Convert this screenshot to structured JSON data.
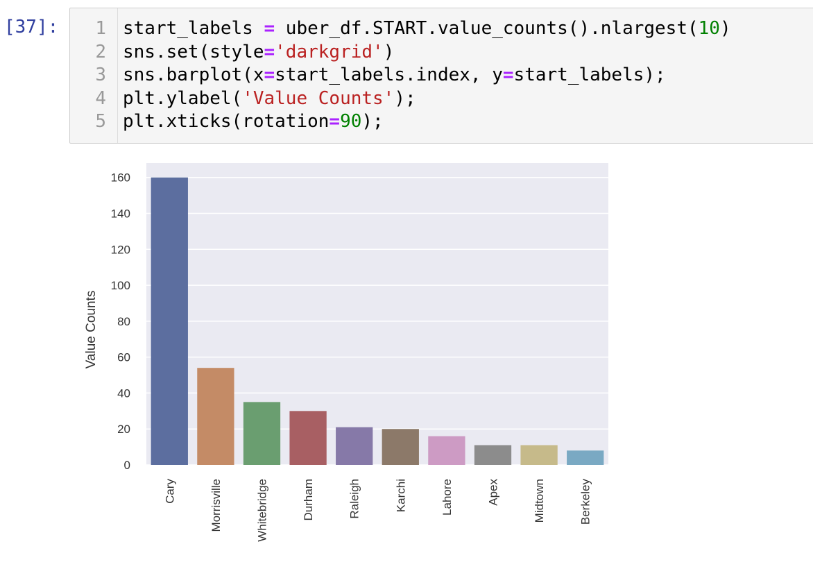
{
  "cell": {
    "prompt": "[37]:",
    "lines": [
      {
        "n": "1",
        "segments": [
          {
            "t": "start_labels ",
            "c": "plain"
          },
          {
            "t": "=",
            "c": "op"
          },
          {
            "t": " uber_df.START.value_counts().nlargest(",
            "c": "plain"
          },
          {
            "t": "10",
            "c": "num"
          },
          {
            "t": ")",
            "c": "plain"
          }
        ]
      },
      {
        "n": "2",
        "segments": [
          {
            "t": "sns.set(style",
            "c": "plain"
          },
          {
            "t": "=",
            "c": "op"
          },
          {
            "t": "'darkgrid'",
            "c": "str"
          },
          {
            "t": ")",
            "c": "plain"
          }
        ]
      },
      {
        "n": "3",
        "segments": [
          {
            "t": "sns.barplot(x",
            "c": "plain"
          },
          {
            "t": "=",
            "c": "op"
          },
          {
            "t": "start_labels.index, y",
            "c": "plain"
          },
          {
            "t": "=",
            "c": "op"
          },
          {
            "t": "start_labels);",
            "c": "plain"
          }
        ]
      },
      {
        "n": "4",
        "segments": [
          {
            "t": "plt.ylabel(",
            "c": "plain"
          },
          {
            "t": "'Value Counts'",
            "c": "str"
          },
          {
            "t": ");",
            "c": "plain"
          }
        ]
      },
      {
        "n": "5",
        "segments": [
          {
            "t": "plt.xticks(rotation",
            "c": "plain"
          },
          {
            "t": "=",
            "c": "op"
          },
          {
            "t": "90",
            "c": "num"
          },
          {
            "t": ");",
            "c": "plain"
          }
        ]
      }
    ]
  },
  "chart_data": {
    "type": "bar",
    "categories": [
      "Cary",
      "Morrisville",
      "Whitebridge",
      "Durham",
      "Raleigh",
      "Karchi",
      "Lahore",
      "Apex",
      "Midtown",
      "Berkeley"
    ],
    "values": [
      160,
      54,
      35,
      30,
      21,
      20,
      16,
      11,
      11,
      8
    ],
    "colors": [
      "#5c6e9f",
      "#c48b66",
      "#6a9e70",
      "#a85f63",
      "#8679a8",
      "#8c7969",
      "#cd9bc4",
      "#8c8c8c",
      "#c6ba8a",
      "#7aa9c3"
    ],
    "title": "",
    "xlabel": "",
    "ylabel": "Value Counts",
    "ylim": [
      0,
      168
    ],
    "yticks": [
      0,
      20,
      40,
      60,
      80,
      100,
      120,
      140,
      160
    ],
    "grid": true,
    "style": "darkgrid",
    "background": "#eaeaf2",
    "xtick_rotation": 90
  }
}
